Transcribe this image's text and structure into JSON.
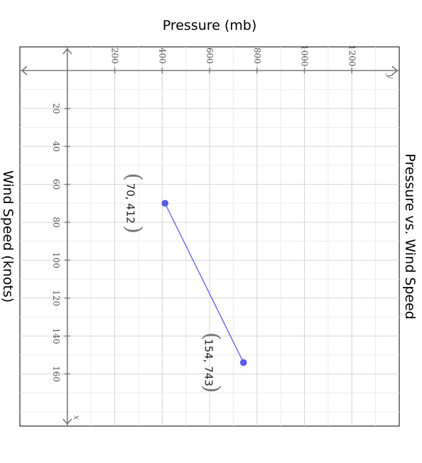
{
  "chart_data": {
    "type": "line",
    "title": "Pressure vs. Wind Speed",
    "xlabel": "Wind Speed (knots)",
    "ylabel": "Pressure (mb)",
    "x_axis_letter": "x",
    "y_axis_letter": "y",
    "xlim": [
      -12.5,
      187.5
    ],
    "ylim": [
      -200,
      1400
    ],
    "x_ticks": [
      "20",
      "40",
      "60",
      "80",
      "100",
      "120",
      "140",
      "160"
    ],
    "y_ticks": [
      "200",
      "400",
      "600",
      "800",
      "1000",
      "1200"
    ],
    "grid": true,
    "series": [
      {
        "color": "#5b5bea",
        "points": [
          {
            "x": 70,
            "y": 412,
            "label": "70, 412"
          },
          {
            "x": 154,
            "y": 743,
            "label": "154, 743"
          }
        ]
      }
    ]
  }
}
